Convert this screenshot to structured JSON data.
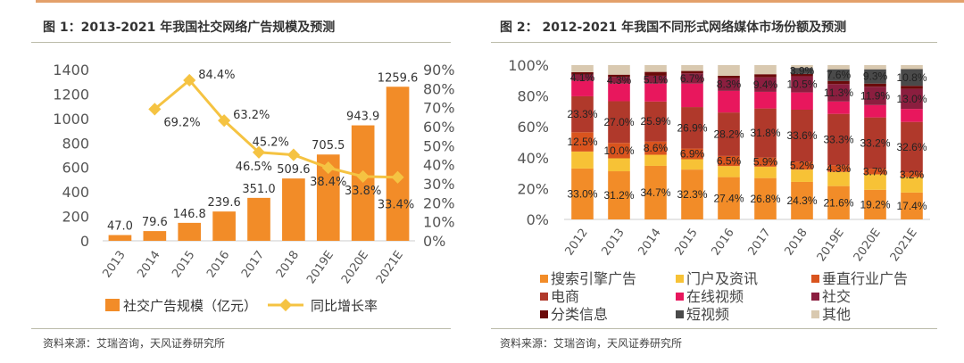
{
  "chart_data": [
    {
      "type": "bar+line",
      "title": "图 1：2013-2021 年我国社交网络广告规模及预测",
      "categories": [
        "2013",
        "2014",
        "2015",
        "2016",
        "2017",
        "2018",
        "2019E",
        "2020E",
        "2021E"
      ],
      "series": [
        {
          "name": "社交广告规模（亿元）",
          "type": "bar",
          "axis": "left",
          "values": [
            47.0,
            79.6,
            146.8,
            239.6,
            351.0,
            509.6,
            705.5,
            943.9,
            1259.6
          ],
          "color": "#F28C28"
        },
        {
          "name": "同比增长率",
          "type": "line",
          "axis": "right",
          "values": [
            null,
            69.2,
            84.4,
            63.2,
            46.5,
            45.2,
            38.4,
            33.8,
            33.4
          ],
          "color": "#F5C342"
        }
      ],
      "ylim_left": [
        0,
        1400
      ],
      "yticks_left": [
        "0",
        "200",
        "400",
        "600",
        "800",
        "1000",
        "1200",
        "1400"
      ],
      "ylim_right": [
        0,
        90
      ],
      "yticks_right": [
        "0%",
        "10%",
        "20%",
        "30%",
        "40%",
        "50%",
        "60%",
        "70%",
        "80%",
        "90%"
      ],
      "legend": "bottom",
      "grid": false,
      "source": "资料来源：艾瑞咨询，天风证券研究所"
    },
    {
      "type": "stacked-bar-100",
      "title": "图 2：  2012-2021 年我国不同形式网络媒体市场份额及预测",
      "categories": [
        "2012",
        "2013",
        "2014",
        "2015",
        "2016",
        "2017",
        "2018",
        "2019E",
        "2020E",
        "2021E"
      ],
      "yticks": [
        "0%",
        "20%",
        "40%",
        "60%",
        "80%",
        "100%"
      ],
      "ylim": [
        0,
        100
      ],
      "series": [
        {
          "name": "搜索引擎广告",
          "color": "#F28C28",
          "values": [
            33.0,
            31.2,
            34.7,
            32.3,
            27.4,
            26.8,
            24.3,
            21.6,
            19.2,
            17.4
          ],
          "labeled": true
        },
        {
          "name": "门户及资讯",
          "color": "#F7C236",
          "values": [
            11.0,
            8.4,
            7.2,
            6.7,
            7.2,
            7.4,
            8.0,
            9.2,
            10.0,
            10.0
          ],
          "labeled": false
        },
        {
          "name": "垂直行业广告",
          "color": "#D9541E",
          "values": [
            12.5,
            10.0,
            8.6,
            6.9,
            6.5,
            5.9,
            5.2,
            4.3,
            3.7,
            3.2
          ],
          "labeled": true
        },
        {
          "name": "电商",
          "color": "#B0392B",
          "values": [
            23.3,
            27.0,
            25.9,
            26.9,
            28.2,
            31.8,
            33.6,
            33.3,
            33.2,
            32.6
          ],
          "labeled": true
        },
        {
          "name": "在线视频",
          "color": "#E8175D",
          "values": [
            10.0,
            11.4,
            11.6,
            15.2,
            14.0,
            10.8,
            11.2,
            8.0,
            8.0,
            8.4
          ],
          "labeled": false
        },
        {
          "name": "社交",
          "color": "#8B1E3F",
          "values": [
            4.1,
            4.3,
            5.1,
            6.7,
            8.3,
            9.4,
            10.5,
            11.3,
            11.9,
            13.0
          ],
          "labeled": true
        },
        {
          "name": "分类信息",
          "color": "#6B0A0A",
          "values": [
            1.5,
            1.5,
            2.5,
            1.5,
            1.5,
            2.0,
            1.5,
            2.0,
            2.0,
            2.0
          ],
          "labeled": false
        },
        {
          "name": "短视频",
          "color": "#4A4A4A",
          "values": [
            0,
            0,
            0,
            0,
            0,
            0,
            3.9,
            7.6,
            9.3,
            10.8
          ],
          "labeled": true
        },
        {
          "name": "其他",
          "color": "#D9C9B0",
          "values": [
            4.6,
            6.2,
            4.4,
            3.8,
            6.9,
            5.9,
            1.8,
            2.7,
            2.7,
            2.6
          ],
          "labeled": false
        }
      ],
      "legend": "bottom",
      "grid": false,
      "source": "资料来源：艾瑞咨询，天风证券研究所"
    }
  ]
}
